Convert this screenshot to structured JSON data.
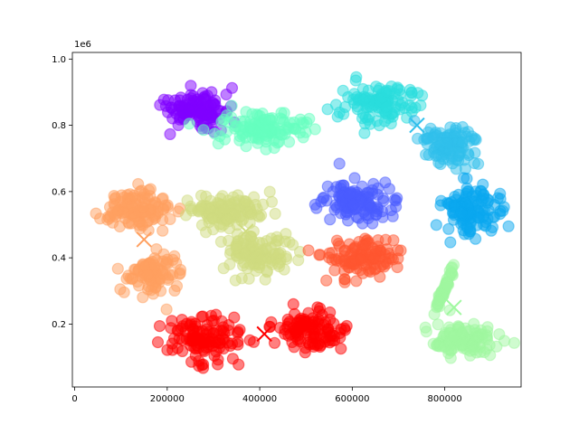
{
  "chart_data": {
    "type": "scatter",
    "title": "",
    "xlabel": "",
    "ylabel": "",
    "y_scale_label": "1e6",
    "xlim": [
      -5000,
      965000
    ],
    "ylim": [
      10000,
      1020000
    ],
    "x_ticks": [
      0,
      200000,
      400000,
      600000,
      800000
    ],
    "x_tick_labels": [
      "0",
      "200000",
      "400000",
      "600000",
      "800000"
    ],
    "y_ticks": [
      200000,
      400000,
      600000,
      800000,
      1000000
    ],
    "y_tick_labels": [
      "0.2",
      "0.4",
      "0.6",
      "0.8",
      "1.0"
    ],
    "grid": false,
    "legend": "none",
    "clusters": [
      {
        "color": "#8000ff",
        "center": [
          260000,
          840000
        ],
        "spread": [
          32000,
          30000
        ],
        "count": 120,
        "seed": 1
      },
      {
        "color": "#66ffc0",
        "center": [
          410000,
          790000
        ],
        "spread": [
          45000,
          25000
        ],
        "count": 120,
        "seed": 2
      },
      {
        "color": "#2adddd",
        "center": [
          660000,
          870000
        ],
        "spread": [
          38000,
          35000
        ],
        "count": 120,
        "seed": 3
      },
      {
        "color": "#30c0ec",
        "center": [
          810000,
          740000
        ],
        "spread": [
          30000,
          30000
        ],
        "count": 100,
        "seed": 4
      },
      {
        "color": "#0aa8f0",
        "center": [
          855000,
          540000
        ],
        "spread": [
          30000,
          40000
        ],
        "count": 120,
        "seed": 5
      },
      {
        "color": "#4a5cff",
        "center": [
          610000,
          570000
        ],
        "spread": [
          40000,
          30000
        ],
        "count": 120,
        "seed": 6
      },
      {
        "color": "#ffa060",
        "center": [
          140000,
          545000
        ],
        "spread": [
          38000,
          30000
        ],
        "count": 120,
        "seed": 7
      },
      {
        "color": "#ffa060",
        "center": [
          170000,
          350000
        ],
        "spread": [
          28000,
          30000
        ],
        "count": 100,
        "seed": 8
      },
      {
        "color": "#d0dc80",
        "center": [
          330000,
          545000
        ],
        "spread": [
          45000,
          25000
        ],
        "count": 120,
        "seed": 9
      },
      {
        "color": "#d0dc80",
        "center": [
          395000,
          405000
        ],
        "spread": [
          35000,
          30000
        ],
        "count": 120,
        "seed": 10
      },
      {
        "color": "#ff5530",
        "center": [
          620000,
          400000
        ],
        "spread": [
          40000,
          30000
        ],
        "count": 120,
        "seed": 11
      },
      {
        "color": "#ff0000",
        "center": [
          280000,
          160000
        ],
        "spread": [
          40000,
          35000
        ],
        "count": 120,
        "seed": 12
      },
      {
        "color": "#ff0000",
        "center": [
          510000,
          185000
        ],
        "spread": [
          35000,
          30000
        ],
        "count": 110,
        "seed": 13
      },
      {
        "color": "#a0f8a0",
        "center": [
          840000,
          150000
        ],
        "spread": [
          35000,
          25000
        ],
        "count": 110,
        "seed": 14
      },
      {
        "color": "#a0f8a0",
        "center": [
          800000,
          310000
        ],
        "spread": [
          10000,
          40000
        ],
        "count": 60,
        "seed": 15,
        "slope": 3.2
      }
    ],
    "centers": [
      {
        "x": 150000,
        "y": 455000,
        "color": "#ffa060"
      },
      {
        "x": 370000,
        "y": 480000,
        "color": "#d0dc80"
      },
      {
        "x": 410000,
        "y": 170000,
        "color": "#ff0000"
      },
      {
        "x": 740000,
        "y": 800000,
        "color": "#30c0ec"
      },
      {
        "x": 820000,
        "y": 250000,
        "color": "#a0f8a0"
      }
    ]
  }
}
